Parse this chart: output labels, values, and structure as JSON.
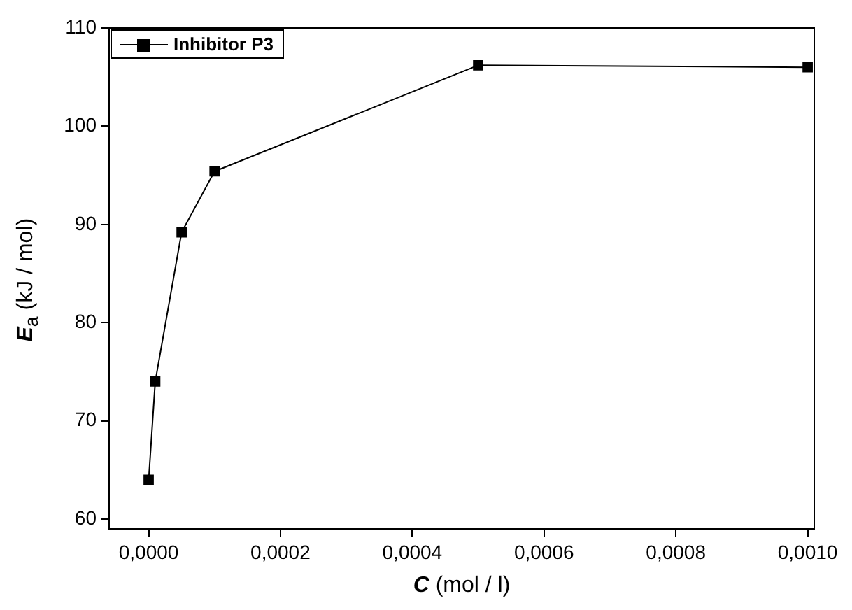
{
  "chart_data": {
    "type": "line",
    "xlabel": "C (mol / l)",
    "ylabel": "E$_{a}$ (kJ / mol)",
    "x": [
      0,
      1e-05,
      5e-05,
      0.0001,
      0.0005,
      0.001
    ],
    "series": [
      {
        "name": "Inhibitor P3",
        "color": "#000000",
        "values": [
          64,
          74,
          89.2,
          95.4,
          106.2,
          106
        ]
      }
    ],
    "xlim": [
      -6e-05,
      0.00101
    ],
    "xticks": [
      {
        "value": 0,
        "label": "0,0000"
      },
      {
        "value": 0.0002,
        "label": "0,0002"
      },
      {
        "value": 0.0004,
        "label": "0,0004"
      },
      {
        "value": 0.0006,
        "label": "0,0006"
      },
      {
        "value": 0.0008,
        "label": "0,0008"
      },
      {
        "value": 0.001,
        "label": "0,0010"
      }
    ],
    "ylim": [
      59,
      110
    ],
    "yticks": [
      60,
      70,
      80,
      90,
      100,
      110
    ],
    "grid": false,
    "legend": "top left",
    "marker": "square",
    "line_style": "solid"
  }
}
